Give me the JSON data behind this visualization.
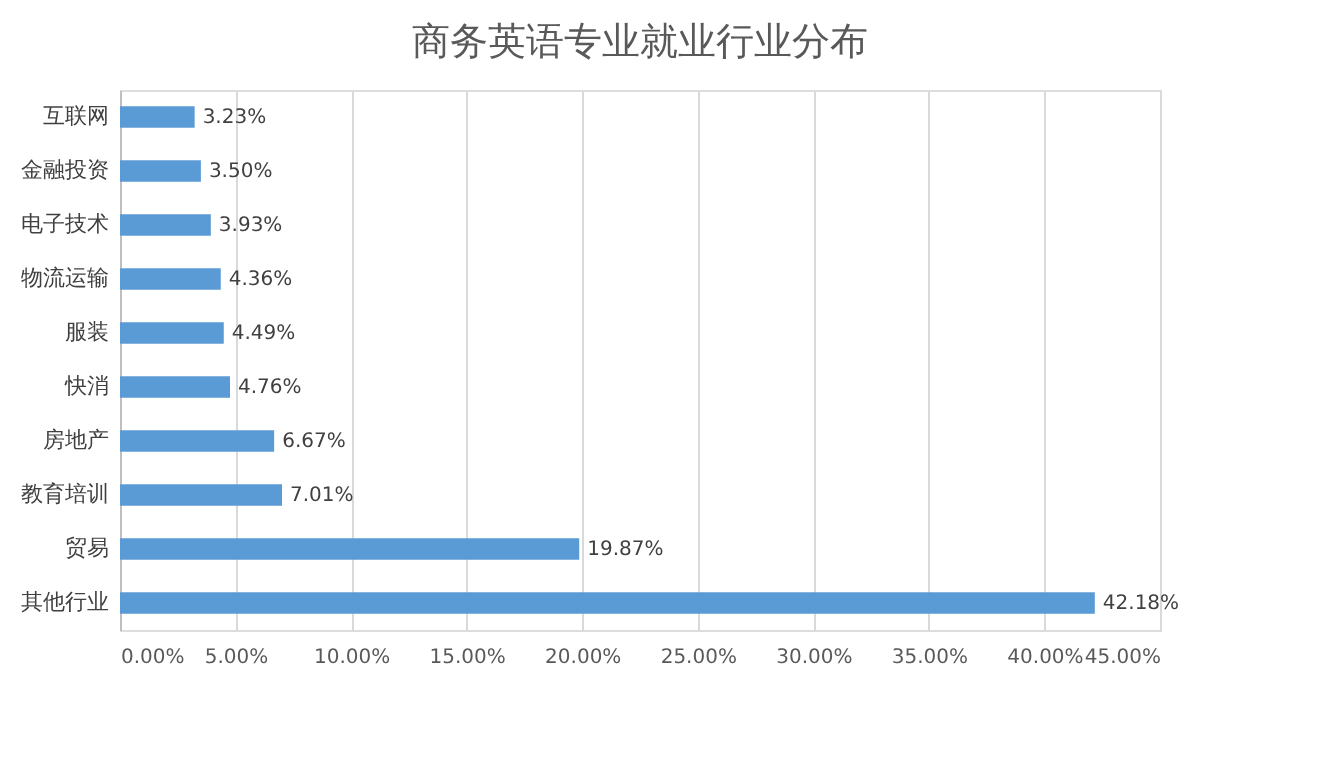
{
  "chart_data": {
    "type": "bar",
    "orientation": "horizontal",
    "title": "商务英语专业就业行业分布",
    "categories": [
      "互联网",
      "金融投资",
      "电子技术",
      "物流运输",
      "服装",
      "快消",
      "房地产",
      "教育培训",
      "贸易",
      "其他行业"
    ],
    "values": [
      3.23,
      3.5,
      3.93,
      4.36,
      4.49,
      4.76,
      6.67,
      7.01,
      19.87,
      42.18
    ],
    "value_labels": [
      "3.23%",
      "3.50%",
      "3.93%",
      "4.36%",
      "4.49%",
      "4.76%",
      "6.67%",
      "7.01%",
      "19.87%",
      "42.18%"
    ],
    "color": "#5b9bd5",
    "xlim": [
      0,
      45
    ],
    "xticks": [
      {
        "value": 0,
        "label": "0.00%"
      },
      {
        "value": 5,
        "label": "5.00%"
      },
      {
        "value": 10,
        "label": "10.00%"
      },
      {
        "value": 15,
        "label": "15.00%"
      },
      {
        "value": 20,
        "label": "20.00%"
      },
      {
        "value": 25,
        "label": "25.00%"
      },
      {
        "value": 30,
        "label": "30.00%"
      },
      {
        "value": 35,
        "label": "35.00%"
      },
      {
        "value": 40,
        "label": "40.00%"
      },
      {
        "value": 45,
        "label": "45.00%"
      }
    ],
    "grid": "x"
  }
}
